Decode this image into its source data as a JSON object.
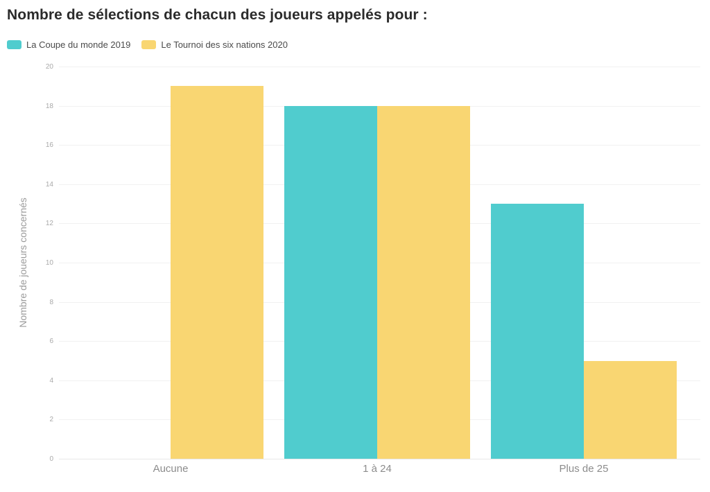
{
  "title": "Nombre de sélections de chacun des joueurs appelés pour :",
  "chart_data": {
    "type": "bar",
    "title": "Nombre de sélections de chacun des joueurs appelés pour :",
    "categories": [
      "Aucune",
      "1 à 24",
      "Plus de 25"
    ],
    "series": [
      {
        "name": "La Coupe du monde 2019",
        "color": "#50CCCE",
        "values": [
          0,
          18,
          13
        ]
      },
      {
        "name": "Le Tournoi des six nations 2020",
        "color": "#F9D672",
        "values": [
          19,
          18,
          5
        ]
      }
    ],
    "xlabel": "",
    "ylabel": "Nombre de joueurs concernés",
    "ylim": [
      0,
      20
    ],
    "ytick_step": 2,
    "grid": true,
    "legend_position": "top-left"
  }
}
